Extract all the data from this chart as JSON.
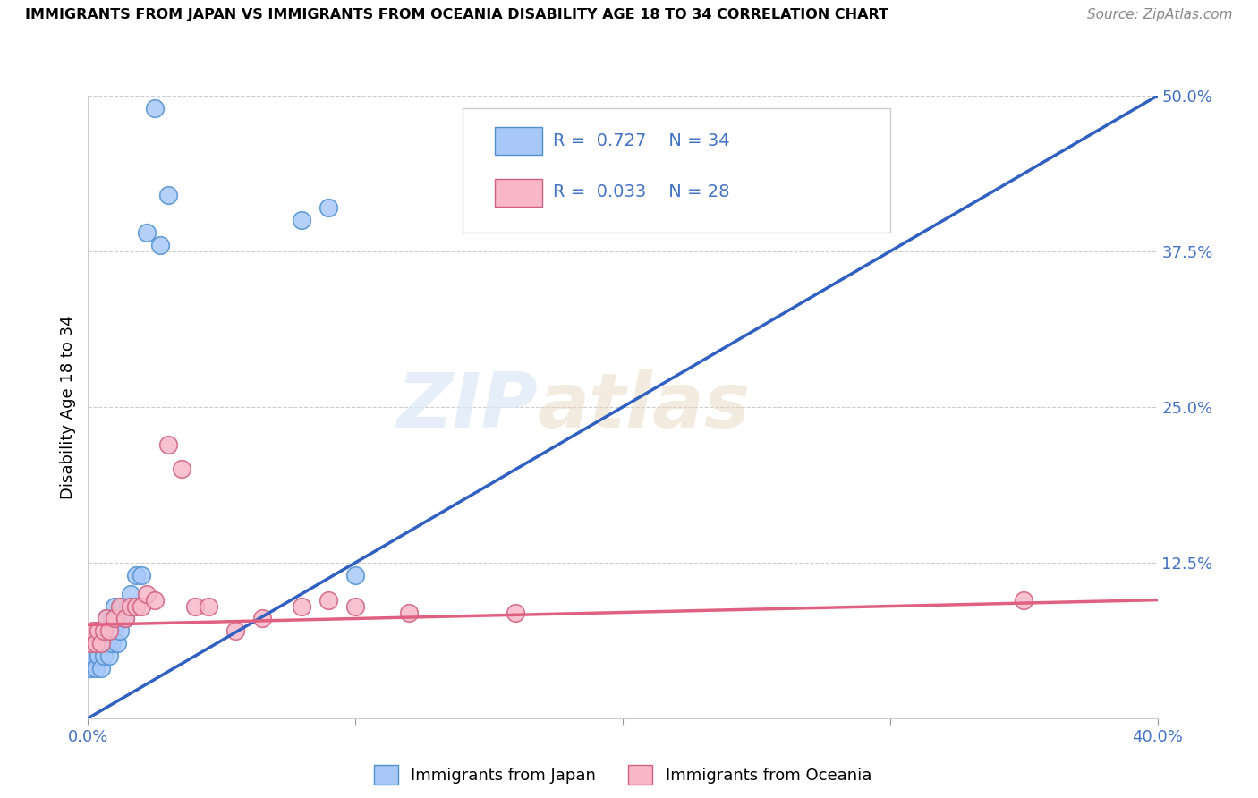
{
  "title": "IMMIGRANTS FROM JAPAN VS IMMIGRANTS FROM OCEANIA DISABILITY AGE 18 TO 34 CORRELATION CHART",
  "source": "Source: ZipAtlas.com",
  "ylabel": "Disability Age 18 to 34",
  "xlim": [
    0.0,
    0.4
  ],
  "ylim": [
    0.0,
    0.5
  ],
  "xticks": [
    0.0,
    0.1,
    0.2,
    0.3,
    0.4
  ],
  "xticklabels": [
    "0.0%",
    "",
    "",
    "",
    "40.0%"
  ],
  "yticks_right": [
    0.0,
    0.125,
    0.25,
    0.375,
    0.5
  ],
  "yticklabels_right": [
    "",
    "12.5%",
    "25.0%",
    "37.5%",
    "50.0%"
  ],
  "japan_color": "#a8c8f8",
  "japan_edge_color": "#5090d0",
  "oceania_color": "#f8b8c8",
  "oceania_edge_color": "#d06080",
  "trend_japan_color": "#3060c0",
  "trend_oceania_color": "#e06080",
  "R_japan": 0.727,
  "N_japan": 34,
  "R_oceania": 0.033,
  "N_oceania": 28,
  "watermark_zip": "ZIP",
  "watermark_atlas": "atlas",
  "legend_japan": "Immigrants from Japan",
  "legend_oceania": "Immigrants from Oceania",
  "japan_x": [
    0.001,
    0.002,
    0.003,
    0.003,
    0.004,
    0.004,
    0.005,
    0.005,
    0.006,
    0.006,
    0.007,
    0.007,
    0.008,
    0.008,
    0.009,
    0.009,
    0.01,
    0.01,
    0.011,
    0.011,
    0.012,
    0.013,
    0.014,
    0.015,
    0.016,
    0.018,
    0.02,
    0.022,
    0.025,
    0.027,
    0.03,
    0.08,
    0.09,
    0.1
  ],
  "japan_y": [
    0.04,
    0.05,
    0.04,
    0.06,
    0.05,
    0.07,
    0.04,
    0.06,
    0.05,
    0.07,
    0.06,
    0.08,
    0.05,
    0.07,
    0.06,
    0.08,
    0.07,
    0.09,
    0.06,
    0.08,
    0.07,
    0.09,
    0.08,
    0.09,
    0.1,
    0.115,
    0.115,
    0.39,
    0.49,
    0.38,
    0.42,
    0.4,
    0.41,
    0.115
  ],
  "oceania_x": [
    0.001,
    0.002,
    0.003,
    0.004,
    0.005,
    0.006,
    0.007,
    0.008,
    0.01,
    0.012,
    0.014,
    0.016,
    0.018,
    0.02,
    0.022,
    0.025,
    0.03,
    0.035,
    0.04,
    0.045,
    0.055,
    0.065,
    0.08,
    0.09,
    0.1,
    0.12,
    0.16,
    0.35
  ],
  "oceania_y": [
    0.06,
    0.07,
    0.06,
    0.07,
    0.06,
    0.07,
    0.08,
    0.07,
    0.08,
    0.09,
    0.08,
    0.09,
    0.09,
    0.09,
    0.1,
    0.095,
    0.22,
    0.2,
    0.09,
    0.09,
    0.07,
    0.08,
    0.09,
    0.095,
    0.09,
    0.085,
    0.085,
    0.095
  ],
  "trend_japan_x0": 0.0,
  "trend_japan_y0": 0.0,
  "trend_japan_x1": 0.4,
  "trend_japan_y1": 0.5,
  "trend_oceania_x0": 0.0,
  "trend_oceania_y0": 0.075,
  "trend_oceania_x1": 0.4,
  "trend_oceania_y1": 0.095
}
